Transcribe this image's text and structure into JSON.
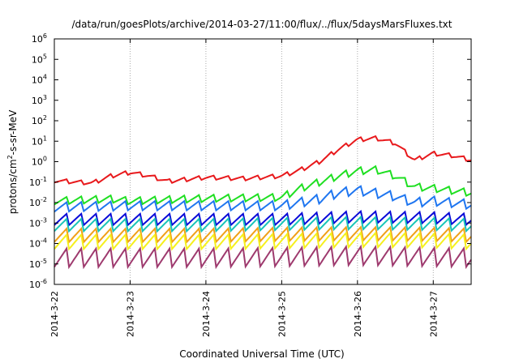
{
  "chart_data": {
    "type": "line",
    "title": "/data/run/goesPlots/archive/2014-03-27/11:00/flux/../flux/5daysMarsFluxes.txt",
    "xlabel": "Coordinated Universal Time (UTC)",
    "ylabel": {
      "prefix": "protons/cm",
      "sup": "2",
      "suffix": "-s-sr-MeV"
    },
    "yscale": "log",
    "ylim": [
      -6,
      6
    ],
    "y_tick_labels": [
      {
        "base": "10",
        "exp": "-6",
        "value": -6
      },
      {
        "base": "10",
        "exp": "-5",
        "value": -5
      },
      {
        "base": "10",
        "exp": "-4",
        "value": -4
      },
      {
        "base": "10",
        "exp": "-3",
        "value": -3
      },
      {
        "base": "10",
        "exp": "-2",
        "value": -2
      },
      {
        "base": "10",
        "exp": "-1",
        "value": -1
      },
      {
        "base": "10",
        "exp": "0",
        "value": 0
      },
      {
        "base": "10",
        "exp": "1",
        "value": 1
      },
      {
        "base": "10",
        "exp": "2",
        "value": 2
      },
      {
        "base": "10",
        "exp": "3",
        "value": 3
      },
      {
        "base": "10",
        "exp": "4",
        "value": 4
      },
      {
        "base": "10",
        "exp": "5",
        "value": 5
      },
      {
        "base": "10",
        "exp": "6",
        "value": 6
      }
    ],
    "xlim": [
      "2014-03-22",
      "2014-03-27T12:00"
    ],
    "x_ticks": [
      {
        "label": "2014-3-22",
        "date": "2014-03-22"
      },
      {
        "label": "2014-3-23",
        "date": "2014-03-23"
      },
      {
        "label": "2014-3-24",
        "date": "2014-03-24"
      },
      {
        "label": "2014-3-25",
        "date": "2014-03-25"
      },
      {
        "label": "2014-3-26",
        "date": "2014-03-26"
      },
      {
        "label": "2014-3-27",
        "date": "2014-03-27"
      }
    ],
    "grid": "vertical-dotted",
    "legend": "none",
    "series": [
      {
        "color": "#e8191c",
        "amplitude": 0.2,
        "points": [
          [
            "2014-03-22",
            0.12
          ],
          [
            "2014-03-22T12:00",
            0.09
          ],
          [
            "2014-03-22T18:00",
            0.2
          ],
          [
            "2014-03-23",
            0.3
          ],
          [
            "2014-03-23T06:00",
            0.2
          ],
          [
            "2014-03-23T12:00",
            0.11
          ],
          [
            "2014-03-24",
            0.17
          ],
          [
            "2014-03-24T12:00",
            0.15
          ],
          [
            "2014-03-25",
            0.2
          ],
          [
            "2014-03-25T06:00",
            0.4
          ],
          [
            "2014-03-25T12:00",
            1.0
          ],
          [
            "2014-03-25T18:00",
            4
          ],
          [
            "2014-03-26",
            12
          ],
          [
            "2014-03-26T06:00",
            14
          ],
          [
            "2014-03-26T12:00",
            8
          ],
          [
            "2014-03-26T18:00",
            1.2
          ],
          [
            "2014-03-27",
            2.5
          ],
          [
            "2014-03-27T06:00",
            2.0
          ],
          [
            "2014-03-27T12:00",
            1.2
          ]
        ]
      },
      {
        "color": "#1fdf22",
        "amplitude": 0.35,
        "points": [
          [
            "2014-03-22",
            0.012
          ],
          [
            "2014-03-22T18:00",
            0.015
          ],
          [
            "2014-03-23",
            0.012
          ],
          [
            "2014-03-24",
            0.016
          ],
          [
            "2014-03-25",
            0.018
          ],
          [
            "2014-03-25T06:00",
            0.05
          ],
          [
            "2014-03-25T12:00",
            0.1
          ],
          [
            "2014-03-25T18:00",
            0.2
          ],
          [
            "2014-03-26",
            0.35
          ],
          [
            "2014-03-26T06:00",
            0.4
          ],
          [
            "2014-03-26T12:00",
            0.2
          ],
          [
            "2014-03-26T18:00",
            0.06
          ],
          [
            "2014-03-27",
            0.05
          ],
          [
            "2014-03-27T12:00",
            0.03
          ]
        ]
      },
      {
        "color": "#1f76f0",
        "amplitude": 0.45,
        "points": [
          [
            "2014-03-22",
            0.006
          ],
          [
            "2014-03-23",
            0.007
          ],
          [
            "2014-03-24",
            0.007
          ],
          [
            "2014-03-25",
            0.007
          ],
          [
            "2014-03-25T12:00",
            0.015
          ],
          [
            "2014-03-25T18:00",
            0.03
          ],
          [
            "2014-03-26",
            0.04
          ],
          [
            "2014-03-26T12:00",
            0.02
          ],
          [
            "2014-03-26T18:00",
            0.01
          ],
          [
            "2014-03-27",
            0.012
          ],
          [
            "2014-03-27T12:00",
            0.008
          ]
        ]
      },
      {
        "color": "#0a0ad8",
        "amplitude": 0.55,
        "points": [
          [
            "2014-03-22",
            0.0015
          ],
          [
            "2014-03-23",
            0.0015
          ],
          [
            "2014-03-24",
            0.0015
          ],
          [
            "2014-03-25",
            0.0015
          ],
          [
            "2014-03-26",
            0.002
          ],
          [
            "2014-03-27",
            0.0018
          ],
          [
            "2014-03-27T12:00",
            0.0015
          ]
        ]
      },
      {
        "color": "#18c4b8",
        "amplitude": 0.6,
        "points": [
          [
            "2014-03-22",
            0.0008
          ],
          [
            "2014-03-23",
            0.0008
          ],
          [
            "2014-03-24",
            0.0008
          ],
          [
            "2014-03-25",
            0.0009
          ],
          [
            "2014-03-26",
            0.001
          ],
          [
            "2014-03-27",
            0.0009
          ],
          [
            "2014-03-27T12:00",
            0.0008
          ]
        ]
      },
      {
        "color": "#f0a018",
        "amplitude": 0.65,
        "points": [
          [
            "2014-03-22",
            0.00025
          ],
          [
            "2014-03-23",
            0.00025
          ],
          [
            "2014-03-24",
            0.00025
          ],
          [
            "2014-03-25",
            0.00028
          ],
          [
            "2014-03-26",
            0.0003
          ],
          [
            "2014-03-27",
            0.00028
          ],
          [
            "2014-03-27T12:00",
            0.00025
          ]
        ]
      },
      {
        "color": "#f5f01e",
        "amplitude": 0.7,
        "points": [
          [
            "2014-03-22",
            0.00012
          ],
          [
            "2014-03-23",
            0.00012
          ],
          [
            "2014-03-24",
            0.00012
          ],
          [
            "2014-03-25",
            0.00013
          ],
          [
            "2014-03-26",
            0.00015
          ],
          [
            "2014-03-27",
            0.00014
          ],
          [
            "2014-03-27T12:00",
            0.00012
          ]
        ]
      },
      {
        "color": "#9e3a6e",
        "amplitude": 0.9,
        "points": [
          [
            "2014-03-22",
            2e-05
          ],
          [
            "2014-03-23",
            2e-05
          ],
          [
            "2014-03-24",
            2e-05
          ],
          [
            "2014-03-25",
            2.2e-05
          ],
          [
            "2014-03-26",
            2.5e-05
          ],
          [
            "2014-03-27",
            2.2e-05
          ],
          [
            "2014-03-27T12:00",
            2e-05
          ]
        ]
      }
    ]
  }
}
